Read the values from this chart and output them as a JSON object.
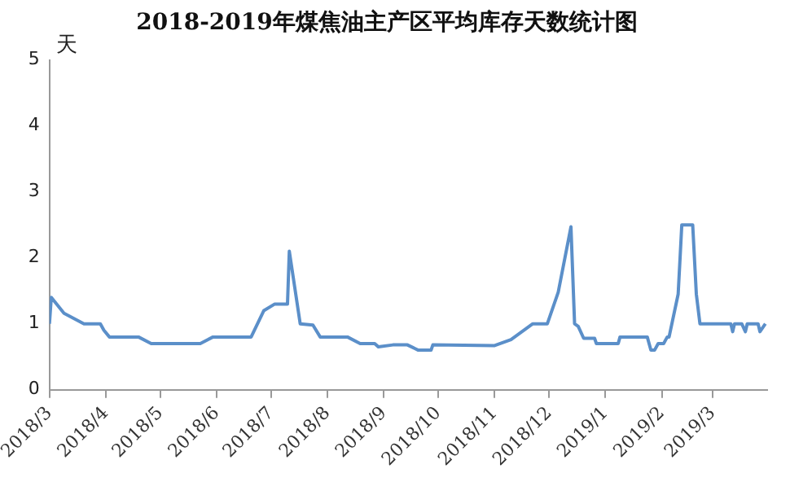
{
  "chart_data": {
    "type": "line",
    "title": "2018-2019年煤焦油主产区平均库存天数统计图",
    "ylabel": "天",
    "x": [
      "2018-03-01",
      "2018-03-02",
      "2018-03-09",
      "2018-03-20",
      "2018-03-29",
      "2018-03-31",
      "2018-04-03",
      "2018-04-19",
      "2018-04-26",
      "2018-05-23",
      "2018-05-30",
      "2018-06-20",
      "2018-06-27",
      "2018-07-03",
      "2018-07-10",
      "2018-07-11",
      "2018-07-17",
      "2018-07-24",
      "2018-07-28",
      "2018-08-12",
      "2018-08-19",
      "2018-08-27",
      "2018-08-29",
      "2018-09-06",
      "2018-09-14",
      "2018-09-20",
      "2018-09-27",
      "2018-09-28",
      "2018-11-01",
      "2018-11-10",
      "2018-11-22",
      "2018-11-30",
      "2018-12-06",
      "2018-12-13",
      "2018-12-15",
      "2018-12-17",
      "2018-12-20",
      "2018-12-26",
      "2018-12-27",
      "2019-01-08",
      "2019-01-09",
      "2019-01-24",
      "2019-01-26",
      "2019-01-28",
      "2019-01-30",
      "2019-02-02",
      "2019-02-04",
      "2019-02-05",
      "2019-02-10",
      "2019-02-11",
      "2019-02-12",
      "2019-02-18",
      "2019-02-20",
      "2019-02-22",
      "2019-03-11",
      "2019-03-12",
      "2019-03-13",
      "2019-03-17",
      "2019-03-19",
      "2019-03-20",
      "2019-03-26",
      "2019-03-27",
      "2019-03-30"
    ],
    "series": [
      {
        "color": "#5b8fc9",
        "values": [
          1.0,
          1.4,
          1.16,
          1.0,
          1.0,
          0.9,
          0.8,
          0.8,
          0.7,
          0.7,
          0.8,
          0.8,
          1.2,
          1.3,
          1.3,
          2.1,
          1.0,
          0.98,
          0.8,
          0.8,
          0.7,
          0.7,
          0.65,
          0.68,
          0.68,
          0.6,
          0.6,
          0.68,
          0.67,
          0.76,
          1.0,
          1.0,
          1.48,
          2.47,
          1.0,
          0.96,
          0.78,
          0.78,
          0.7,
          0.7,
          0.8,
          0.8,
          0.6,
          0.6,
          0.7,
          0.7,
          0.8,
          0.8,
          1.45,
          1.97,
          2.5,
          2.5,
          1.45,
          1.0,
          1.0,
          0.88,
          1.0,
          1.0,
          0.88,
          1.0,
          1.0,
          0.88,
          1.0
        ]
      }
    ],
    "xlim": [
      "2018-03-01",
      "2019-03-31"
    ],
    "xticks": [
      {
        "value": "2018-03-01",
        "label": "2018/3"
      },
      {
        "value": "2018-04-01",
        "label": "2018/4"
      },
      {
        "value": "2018-05-01",
        "label": "2018/5"
      },
      {
        "value": "2018-06-01",
        "label": "2018/6"
      },
      {
        "value": "2018-07-01",
        "label": "2018/7"
      },
      {
        "value": "2018-08-01",
        "label": "2018/8"
      },
      {
        "value": "2018-09-01",
        "label": "2018/9"
      },
      {
        "value": "2018-10-01",
        "label": "2018/10"
      },
      {
        "value": "2018-11-01",
        "label": "2018/11"
      },
      {
        "value": "2018-12-01",
        "label": "2018/12"
      },
      {
        "value": "2019-01-01",
        "label": "2019/1"
      },
      {
        "value": "2019-02-01",
        "label": "2019/2"
      },
      {
        "value": "2019-03-01",
        "label": "2019/3"
      }
    ],
    "ylim": [
      0,
      5
    ],
    "yticks": [
      0,
      1,
      2,
      3,
      4,
      5
    ],
    "grid": false,
    "legend": false,
    "marker": "none",
    "line_style": "solid"
  }
}
